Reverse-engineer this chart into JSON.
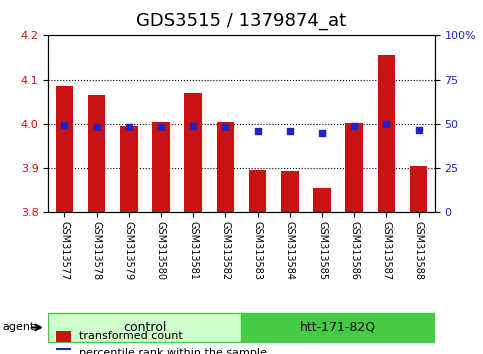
{
  "title": "GDS3515 / 1379874_at",
  "samples": [
    "GSM313577",
    "GSM313578",
    "GSM313579",
    "GSM313580",
    "GSM313581",
    "GSM313582",
    "GSM313583",
    "GSM313584",
    "GSM313585",
    "GSM313586",
    "GSM313587",
    "GSM313588"
  ],
  "bar_values": [
    4.085,
    4.065,
    3.995,
    4.005,
    4.07,
    4.005,
    3.895,
    3.893,
    3.855,
    4.002,
    4.155,
    3.905
  ],
  "blue_values": [
    49.5,
    48.0,
    48.0,
    48.5,
    49.0,
    48.5,
    46.0,
    46.0,
    45.0,
    49.0,
    50.0,
    46.5
  ],
  "bar_color": "#cc1111",
  "blue_color": "#2222cc",
  "ylim_left": [
    3.8,
    4.2
  ],
  "ylim_right": [
    0,
    100
  ],
  "yticks_left": [
    3.8,
    3.9,
    4.0,
    4.1,
    4.2
  ],
  "yticks_right": [
    0,
    25,
    50,
    75,
    100
  ],
  "ytick_labels_right": [
    "0",
    "25",
    "50",
    "75",
    "100%"
  ],
  "grid_values": [
    3.9,
    4.0,
    4.1
  ],
  "bar_bottom": 3.8,
  "agent_label": "agent",
  "group1_label": "control",
  "group2_label": "htt-171-82Q",
  "group1_indices": [
    0,
    1,
    2,
    3,
    4,
    5
  ],
  "group2_indices": [
    6,
    7,
    8,
    9,
    10,
    11
  ],
  "legend_bar_label": "transformed count",
  "legend_dot_label": "percentile rank within the sample",
  "bg_color": "#ffffff",
  "plot_bg": "#ffffff",
  "group_bg_light": "#ccffcc",
  "group_bg_dark": "#44cc44",
  "tick_area_bg": "#cccccc",
  "title_fontsize": 13,
  "tick_fontsize": 8,
  "label_fontsize": 9
}
